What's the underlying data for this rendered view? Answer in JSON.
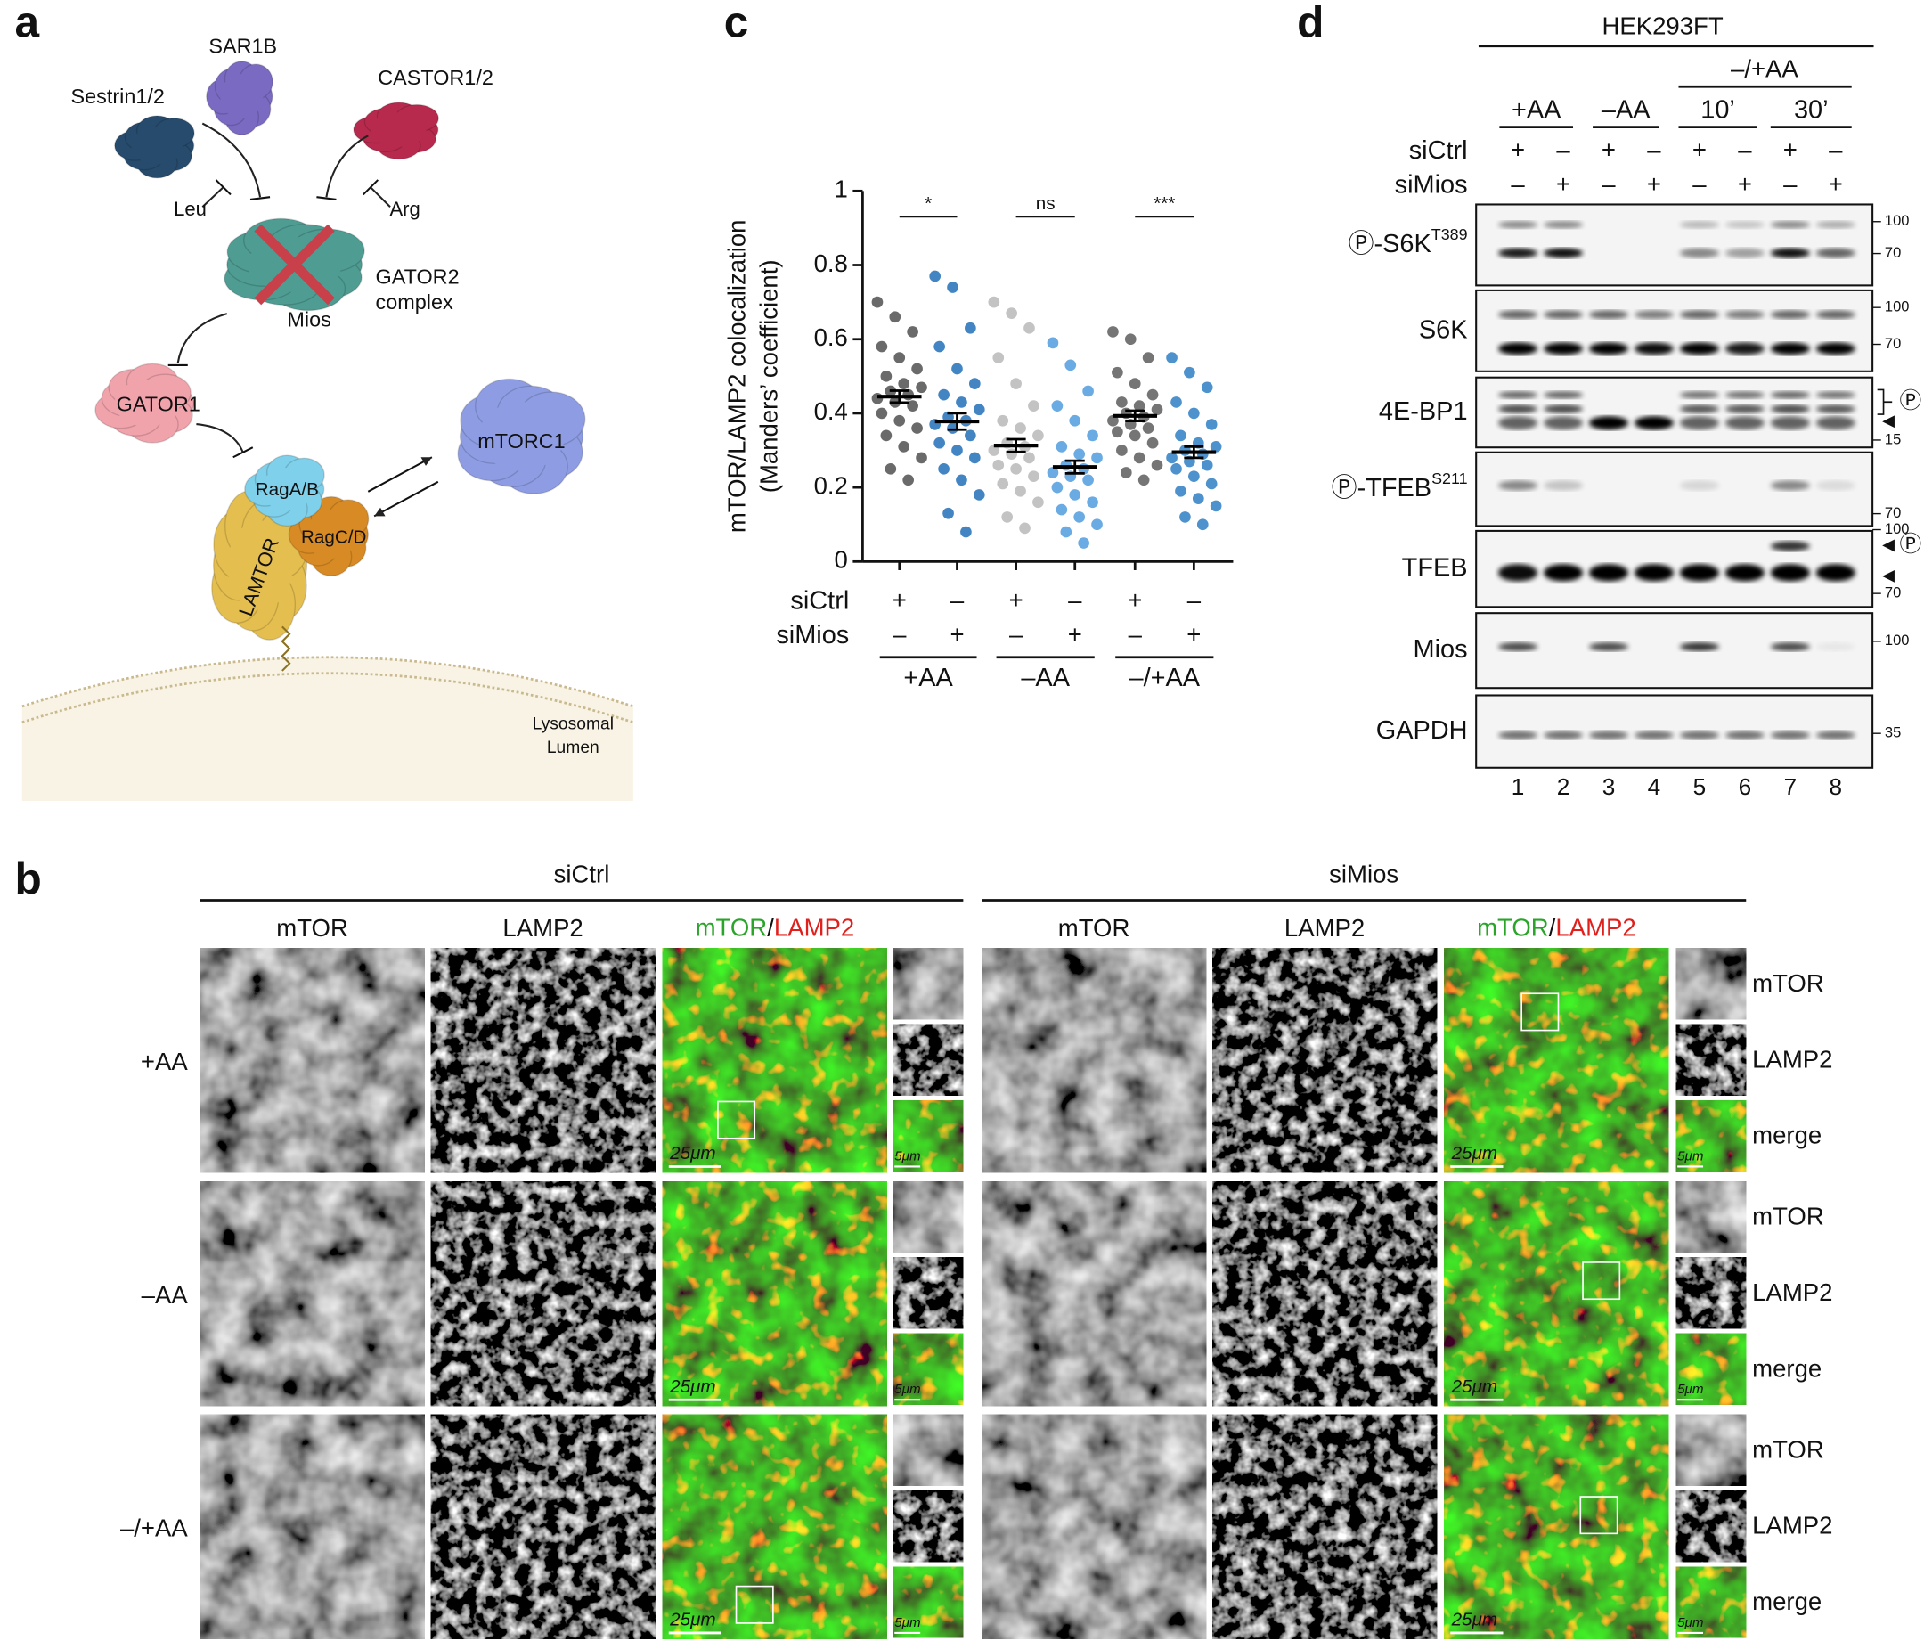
{
  "panel_a": {
    "letter": "a",
    "sestrin": "Sestrin1/2",
    "sar1b": "SAR1B",
    "castor": "CASTOR1/2",
    "leu": "Leu",
    "arg": "Arg",
    "gator2": [
      "GATOR2",
      "complex"
    ],
    "mios": "Mios",
    "gator1": "GATOR1",
    "rag_ab": "RagA/B",
    "rag_cd": "RagC/D",
    "lamtor": "LAMTOR",
    "mtorc1": "mTORC1",
    "lumen": [
      "Lysosomal",
      "Lumen"
    ]
  },
  "panel_b": {
    "letter": "b",
    "groups": [
      "siCtrl",
      "siMios"
    ],
    "channels": [
      "mTOR",
      "LAMP2"
    ],
    "merge": [
      "mTOR",
      "/",
      "LAMP2"
    ],
    "conditions": [
      "+AA",
      "–AA",
      "–/+AA"
    ],
    "inset_labels": [
      "mTOR",
      "LAMP2",
      "merge"
    ],
    "scale_bars": [
      "25μm",
      "5μm"
    ]
  },
  "chart_data": {
    "type": "dotplot",
    "letter": "c",
    "ylabel": [
      "mTOR/LAMP2 colocalization",
      "(Manders’ coefficient)"
    ],
    "ylim": [
      0,
      1
    ],
    "yticks": [
      0,
      0.2,
      0.4,
      0.6,
      0.8,
      1
    ],
    "row_labels": [
      "siCtrl",
      "siMios"
    ],
    "siCtrl": [
      "+",
      "–",
      "+",
      "–",
      "+",
      "–"
    ],
    "siMios": [
      "–",
      "+",
      "–",
      "+",
      "–",
      "+"
    ],
    "conditions": [
      "+AA",
      "–AA",
      "–/+AA"
    ],
    "significance": [
      "*",
      "ns",
      "***"
    ],
    "groups": [
      {
        "color": "#5a5a5a",
        "mean": 0.445,
        "sem": 0.016,
        "points": [
          0.7,
          0.66,
          0.62,
          0.58,
          0.55,
          0.52,
          0.5,
          0.48,
          0.47,
          0.46,
          0.45,
          0.44,
          0.43,
          0.42,
          0.4,
          0.38,
          0.36,
          0.34,
          0.31,
          0.28,
          0.25,
          0.22
        ]
      },
      {
        "color": "#2f78bd",
        "mean": 0.378,
        "sem": 0.022,
        "points": [
          0.77,
          0.74,
          0.63,
          0.58,
          0.52,
          0.48,
          0.45,
          0.43,
          0.41,
          0.39,
          0.38,
          0.37,
          0.36,
          0.34,
          0.32,
          0.3,
          0.28,
          0.25,
          0.22,
          0.18,
          0.13,
          0.08
        ]
      },
      {
        "color": "#bdbdbd",
        "mean": 0.313,
        "sem": 0.017,
        "points": [
          0.7,
          0.67,
          0.63,
          0.55,
          0.48,
          0.42,
          0.38,
          0.36,
          0.34,
          0.32,
          0.31,
          0.3,
          0.29,
          0.28,
          0.26,
          0.25,
          0.23,
          0.21,
          0.19,
          0.16,
          0.12,
          0.09
        ]
      },
      {
        "color": "#5aa2e0",
        "mean": 0.255,
        "sem": 0.017,
        "points": [
          0.59,
          0.53,
          0.46,
          0.42,
          0.38,
          0.34,
          0.31,
          0.29,
          0.28,
          0.26,
          0.25,
          0.24,
          0.23,
          0.22,
          0.2,
          0.18,
          0.16,
          0.14,
          0.12,
          0.1,
          0.08,
          0.05
        ]
      },
      {
        "color": "#666666",
        "mean": 0.393,
        "sem": 0.014,
        "points": [
          0.62,
          0.6,
          0.55,
          0.51,
          0.48,
          0.45,
          0.43,
          0.42,
          0.41,
          0.4,
          0.39,
          0.38,
          0.37,
          0.36,
          0.35,
          0.34,
          0.32,
          0.3,
          0.28,
          0.26,
          0.24,
          0.22
        ]
      },
      {
        "color": "#3a86c8",
        "mean": 0.295,
        "sem": 0.015,
        "points": [
          0.55,
          0.51,
          0.47,
          0.43,
          0.4,
          0.37,
          0.34,
          0.32,
          0.31,
          0.3,
          0.29,
          0.28,
          0.27,
          0.26,
          0.25,
          0.23,
          0.21,
          0.19,
          0.17,
          0.15,
          0.12,
          0.1
        ]
      }
    ]
  },
  "panel_d": {
    "letter": "d",
    "cell_line": "HEK293FT",
    "time_group": "–/+AA",
    "conditions": [
      "+AA",
      "–AA",
      "10’",
      "30’"
    ],
    "row_labels": [
      "siCtrl",
      "siMios"
    ],
    "siCtrl": [
      "+",
      "–",
      "+",
      "–",
      "+",
      "–",
      "+",
      "–"
    ],
    "siMios": [
      "–",
      "+",
      "–",
      "+",
      "–",
      "+",
      "–",
      "+"
    ],
    "blots": [
      {
        "name": "Ⓟ-S6K",
        "sup": "T389",
        "markers": [
          100,
          70
        ]
      },
      {
        "name": "S6K",
        "markers": [
          100,
          70
        ]
      },
      {
        "name": "4E-BP1",
        "markers": [
          15
        ],
        "annotation": "Ⓟ"
      },
      {
        "name": "Ⓟ-TFEB",
        "sup": "S211",
        "markers": [
          70
        ]
      },
      {
        "name": "TFEB",
        "markers": [
          100,
          70
        ],
        "annotation": "Ⓟ"
      },
      {
        "name": "Mios",
        "markers": [
          100
        ]
      },
      {
        "name": "GAPDH",
        "markers": [
          35
        ]
      }
    ],
    "lanes": [
      1,
      2,
      3,
      4,
      5,
      6,
      7,
      8
    ]
  }
}
